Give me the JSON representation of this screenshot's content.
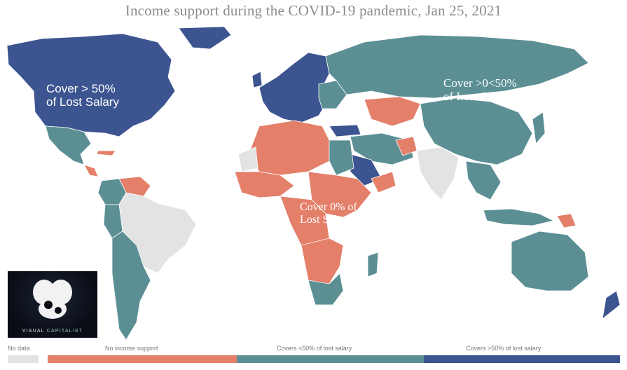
{
  "title": "Income support during the COVID-19 pandemic, Jan 25, 2021",
  "annotations": {
    "high": [
      "Cover > 50%",
      "of Lost Salary"
    ],
    "mid": [
      "Cover >0<50%",
      "of Lost Salary"
    ],
    "zero": [
      "Cover 0% of",
      "Lost Salary"
    ]
  },
  "logo": {
    "part1": "VISUAL",
    "part2": "CAPITALIST"
  },
  "legend": {
    "nodata": "No data",
    "no_support": "No income support",
    "mid": "Covers <50% of lost salary",
    "high": "Covers >50% of lost salary"
  },
  "colors": {
    "no_support": "#e47f6a",
    "mid": "#5b8f94",
    "high": "#3c5591",
    "nodata": "#e3e3e3",
    "ocean": "#ffffff"
  }
}
